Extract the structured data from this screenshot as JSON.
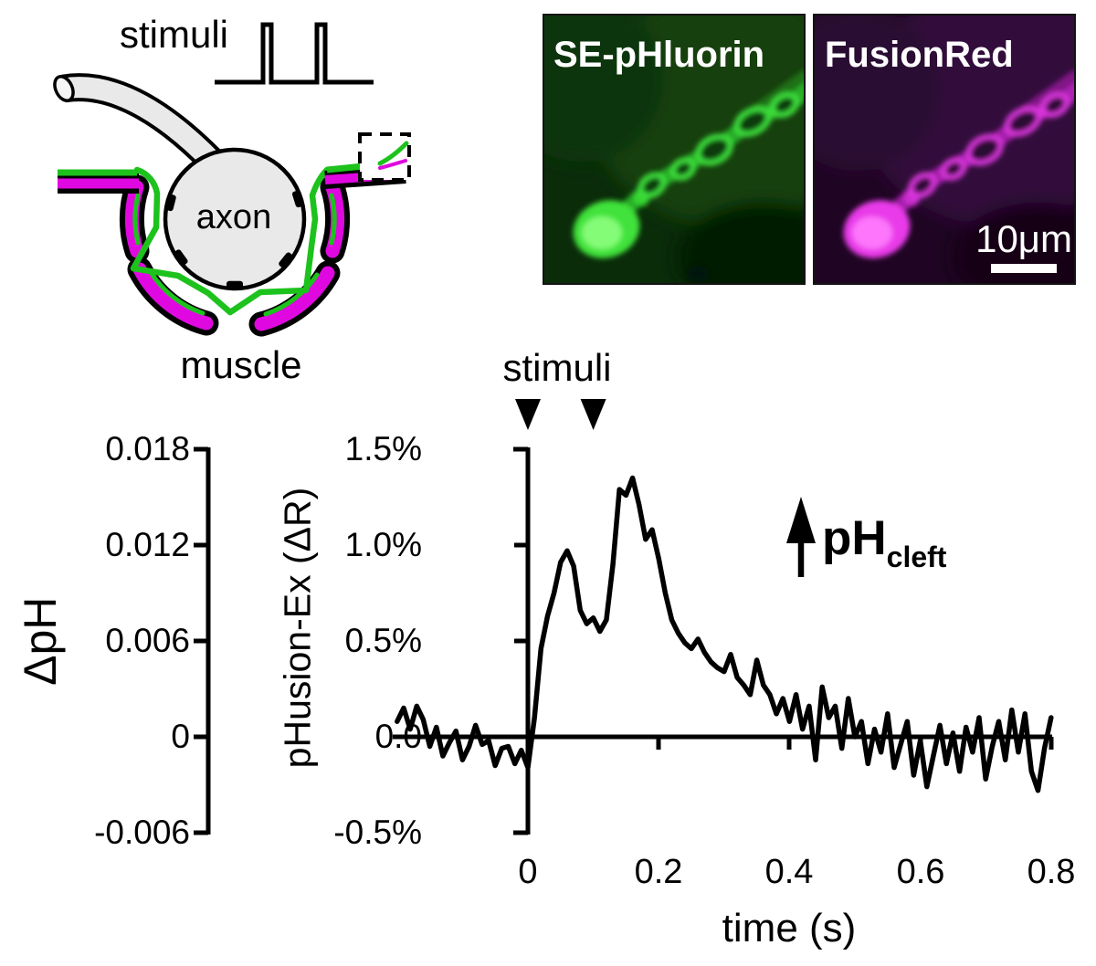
{
  "figure": {
    "schematic": {
      "stimuli_label": "stimuli",
      "axon_label": "axon",
      "muscle_label": "muscle",
      "colors": {
        "presynaptic_green": "#1dc21d",
        "postsynaptic_magenta": "#e008e0",
        "cell_fill": "#e9e9e9",
        "outline": "#000000"
      }
    },
    "micrographs": {
      "left_panel": {
        "label": "SE-pHluorin",
        "channel_color": "#3ce23c"
      },
      "right_panel": {
        "label": "FusionRed",
        "channel_color": "#e83ae8"
      },
      "scale_bar_label": "10μm"
    },
    "chart": {
      "stimuli_label": "stimuli",
      "annotation": {
        "text": "pH",
        "subscript": "cleft"
      },
      "xlabel": "time (s)",
      "x_ticks": [
        "0",
        "0.2",
        "0.4",
        "0.6",
        "0.8"
      ],
      "dpH_axis": {
        "label": "ΔpH",
        "ticks": [
          "0.018",
          "0.012",
          "0.006",
          "0",
          "-0.006"
        ]
      },
      "dR_axis": {
        "label": "pHusion-Ex (ΔR)",
        "ticks": [
          "1.5%",
          "1.0%",
          "0.5%",
          "0.0",
          "-0.5%"
        ]
      }
    }
  },
  "chart_data": {
    "type": "line",
    "title": "",
    "xlabel": "time (s)",
    "ylabel_left_inner": "pHusion-Ex (ΔR)",
    "ylabel_left_outer": "ΔpH",
    "x_range_s": [
      -0.2,
      0.8
    ],
    "y_range_percent": [
      -0.5,
      1.5
    ],
    "y_range_dpH": [
      -0.006,
      0.018
    ],
    "x_tick_values": [
      0,
      0.2,
      0.4,
      0.6,
      0.8
    ],
    "grid": false,
    "legend": false,
    "stimuli_times_s": [
      0,
      0.1
    ],
    "annotations": [
      "stimuli arrowheads at 0 s and 0.1 s",
      "upward arrow: pH cleft increase"
    ],
    "series": [
      {
        "name": "pHusion-Ex ΔR (%)",
        "x": [
          -0.2,
          -0.19,
          -0.18,
          -0.17,
          -0.16,
          -0.15,
          -0.14,
          -0.13,
          -0.12,
          -0.11,
          -0.1,
          -0.09,
          -0.08,
          -0.07,
          -0.06,
          -0.05,
          -0.04,
          -0.03,
          -0.02,
          -0.01,
          0.0,
          0.01,
          0.02,
          0.03,
          0.04,
          0.05,
          0.06,
          0.07,
          0.08,
          0.09,
          0.1,
          0.11,
          0.12,
          0.13,
          0.14,
          0.15,
          0.16,
          0.17,
          0.18,
          0.19,
          0.2,
          0.21,
          0.22,
          0.23,
          0.24,
          0.25,
          0.26,
          0.27,
          0.28,
          0.29,
          0.3,
          0.31,
          0.32,
          0.33,
          0.34,
          0.35,
          0.36,
          0.37,
          0.38,
          0.39,
          0.4,
          0.41,
          0.42,
          0.43,
          0.44,
          0.45,
          0.46,
          0.47,
          0.48,
          0.49,
          0.5,
          0.51,
          0.52,
          0.53,
          0.54,
          0.55,
          0.56,
          0.57,
          0.58,
          0.59,
          0.6,
          0.61,
          0.62,
          0.63,
          0.64,
          0.65,
          0.66,
          0.67,
          0.68,
          0.69,
          0.7,
          0.71,
          0.72,
          0.73,
          0.74,
          0.75,
          0.76,
          0.77,
          0.78,
          0.79,
          0.8
        ],
        "y": [
          0.08,
          0.15,
          0.04,
          0.16,
          0.09,
          -0.05,
          0.05,
          -0.1,
          -0.03,
          0.03,
          -0.12,
          -0.05,
          0.06,
          -0.04,
          -0.02,
          -0.15,
          -0.06,
          -0.05,
          -0.14,
          -0.07,
          -0.16,
          0.1,
          0.46,
          0.63,
          0.75,
          0.91,
          0.97,
          0.89,
          0.66,
          0.59,
          0.62,
          0.55,
          0.61,
          0.9,
          1.29,
          1.26,
          1.35,
          1.21,
          1.03,
          1.08,
          0.93,
          0.75,
          0.61,
          0.54,
          0.49,
          0.46,
          0.51,
          0.44,
          0.39,
          0.36,
          0.34,
          0.43,
          0.31,
          0.27,
          0.22,
          0.4,
          0.27,
          0.22,
          0.12,
          0.2,
          0.08,
          0.22,
          0.04,
          0.16,
          -0.12,
          0.26,
          0.1,
          0.16,
          -0.06,
          0.2,
          0.0,
          0.08,
          -0.14,
          0.04,
          -0.08,
          0.12,
          -0.16,
          -0.04,
          0.08,
          -0.2,
          -0.02,
          -0.26,
          -0.1,
          0.06,
          -0.14,
          0.02,
          -0.18,
          0.05,
          -0.08,
          0.1,
          -0.22,
          -0.05,
          0.08,
          -0.12,
          0.14,
          -0.08,
          0.12,
          -0.18,
          -0.28,
          -0.06,
          0.1
        ]
      }
    ]
  }
}
